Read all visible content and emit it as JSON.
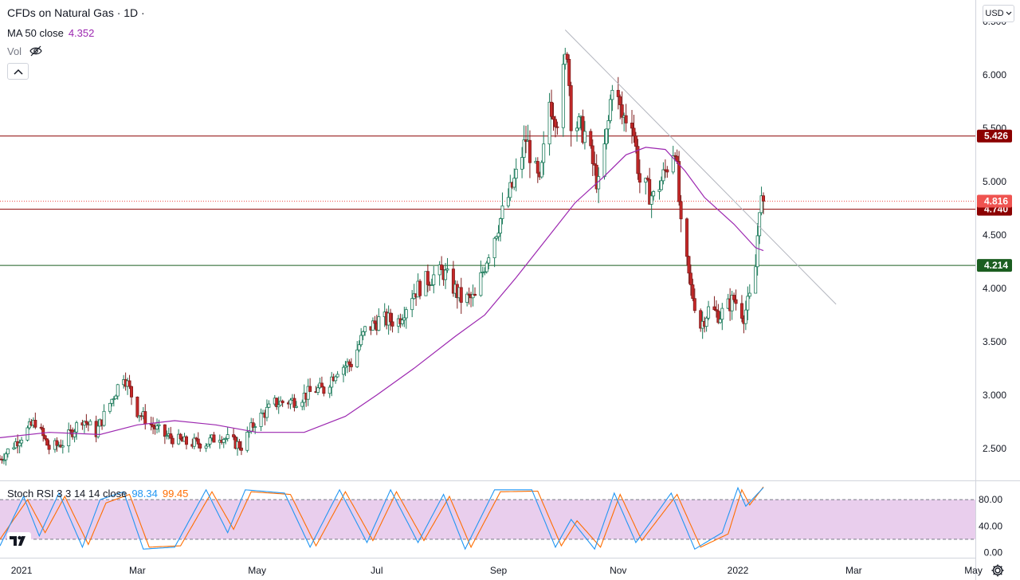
{
  "header": {
    "title": "CFDs on Natural Gas · 1D ·",
    "ma_label": "MA 50 close",
    "ma_value": "4.352",
    "vol_label": "Vol"
  },
  "toolbar": {
    "currency": "USD"
  },
  "colors": {
    "up": "#26a69a",
    "down": "#ef5350",
    "candle_up_body": "#ffffff",
    "candle_down_body": "#c62828",
    "ma": "#9c27b0",
    "red_line": "#8b0000",
    "green_line": "#1b5e20",
    "trend_line": "#b2b5be",
    "stoch_k": "#2196f3",
    "stoch_d": "#ff6d00",
    "stoch_band": "#e1bee7"
  },
  "chart_data": {
    "type": "candlestick",
    "title": "CFDs on Natural Gas · 1D ·",
    "price_axis": {
      "ticks": [
        2.5,
        3.0,
        3.5,
        4.0,
        4.5,
        5.0,
        5.5,
        6.0,
        6.5
      ],
      "tick_labels": [
        "2.500",
        "3.000",
        "3.500",
        "4.000",
        "4.500",
        "5.000",
        "5.500",
        "6.000",
        "6.500"
      ],
      "range": [
        2.2,
        6.7
      ]
    },
    "time_axis": {
      "labels": [
        "2021",
        "Mar",
        "May",
        "Jul",
        "Sep",
        "Nov",
        "2022",
        "Mar",
        "May"
      ],
      "label_dates": [
        "2021-01-01",
        "2021-03-01",
        "2021-05-01",
        "2021-07-01",
        "2021-09-01",
        "2021-11-01",
        "2022-01-01",
        "2022-03-01",
        "2022-05-01"
      ],
      "range": [
        "2020-12-21",
        "2022-05-02"
      ]
    },
    "horizontal_levels": [
      {
        "value": 5.426,
        "label": "5.426",
        "color": "#8b0000",
        "style": "solid"
      },
      {
        "value": 4.74,
        "label": "4.740",
        "color": "#8b0000",
        "style": "solid"
      },
      {
        "value": 4.214,
        "label": "4.214",
        "color": "#1b5e20",
        "style": "solid"
      },
      {
        "value": 4.816,
        "label": "4.816",
        "color": "#ef5350",
        "style": "dotted"
      }
    ],
    "trend_line": {
      "start": [
        "2021-10-05",
        6.42
      ],
      "end": [
        "2022-02-20",
        3.85
      ]
    },
    "price_path": [
      [
        "2020-12-21",
        2.4
      ],
      [
        "2021-01-08",
        2.75
      ],
      [
        "2021-01-15",
        2.5
      ],
      [
        "2021-01-22",
        2.55
      ],
      [
        "2021-02-01",
        2.78
      ],
      [
        "2021-02-08",
        2.65
      ],
      [
        "2021-02-17",
        3.0
      ],
      [
        "2021-02-22",
        3.2
      ],
      [
        "2021-03-01",
        2.85
      ],
      [
        "2021-03-08",
        2.72
      ],
      [
        "2021-03-15",
        2.62
      ],
      [
        "2021-03-26",
        2.55
      ],
      [
        "2021-04-05",
        2.55
      ],
      [
        "2021-04-12",
        2.62
      ],
      [
        "2021-04-23",
        2.52
      ],
      [
        "2021-04-30",
        2.75
      ],
      [
        "2021-05-10",
        2.92
      ],
      [
        "2021-05-20",
        2.95
      ],
      [
        "2021-05-31",
        3.05
      ],
      [
        "2021-06-04",
        3.05
      ],
      [
        "2021-06-11",
        3.25
      ],
      [
        "2021-06-18",
        3.3
      ],
      [
        "2021-06-25",
        3.6
      ],
      [
        "2021-07-02",
        3.7
      ],
      [
        "2021-07-12",
        3.7
      ],
      [
        "2021-07-19",
        3.95
      ],
      [
        "2021-07-28",
        4.1
      ],
      [
        "2021-08-04",
        4.15
      ],
      [
        "2021-08-13",
        3.9
      ],
      [
        "2021-08-20",
        3.9
      ],
      [
        "2021-08-27",
        4.35
      ],
      [
        "2021-09-03",
        4.7
      ],
      [
        "2021-09-10",
        5.05
      ],
      [
        "2021-09-15",
        5.4
      ],
      [
        "2021-09-22",
        4.95
      ],
      [
        "2021-09-27",
        5.75
      ],
      [
        "2021-10-01",
        5.6
      ],
      [
        "2021-10-06",
        6.25
      ],
      [
        "2021-10-08",
        5.6
      ],
      [
        "2021-10-15",
        5.45
      ],
      [
        "2021-10-22",
        4.95
      ],
      [
        "2021-10-27",
        5.55
      ],
      [
        "2021-10-29",
        5.95
      ],
      [
        "2021-11-03",
        5.6
      ],
      [
        "2021-11-08",
        5.6
      ],
      [
        "2021-11-12",
        5.0
      ],
      [
        "2021-11-19",
        4.85
      ],
      [
        "2021-11-24",
        5.05
      ],
      [
        "2021-11-30",
        5.35
      ],
      [
        "2021-12-03",
        4.55
      ],
      [
        "2021-12-08",
        4.0
      ],
      [
        "2021-12-13",
        3.65
      ],
      [
        "2021-12-17",
        3.8
      ],
      [
        "2021-12-23",
        3.75
      ],
      [
        "2021-12-30",
        3.9
      ],
      [
        "2022-01-04",
        3.75
      ],
      [
        "2022-01-07",
        3.9
      ],
      [
        "2022-01-10",
        4.2
      ],
      [
        "2022-01-12",
        4.8
      ],
      [
        "2022-01-14",
        4.816
      ]
    ],
    "ma50_path": [
      [
        "2020-12-21",
        2.6
      ],
      [
        "2021-01-15",
        2.65
      ],
      [
        "2021-02-10",
        2.63
      ],
      [
        "2021-03-01",
        2.72
      ],
      [
        "2021-03-20",
        2.76
      ],
      [
        "2021-04-10",
        2.72
      ],
      [
        "2021-05-01",
        2.65
      ],
      [
        "2021-05-25",
        2.65
      ],
      [
        "2021-06-15",
        2.8
      ],
      [
        "2021-07-01",
        3.0
      ],
      [
        "2021-07-20",
        3.25
      ],
      [
        "2021-08-10",
        3.55
      ],
      [
        "2021-08-25",
        3.75
      ],
      [
        "2021-09-10",
        4.1
      ],
      [
        "2021-09-25",
        4.45
      ],
      [
        "2021-10-10",
        4.8
      ],
      [
        "2021-10-25",
        5.05
      ],
      [
        "2021-11-05",
        5.25
      ],
      [
        "2021-11-15",
        5.32
      ],
      [
        "2021-11-25",
        5.3
      ],
      [
        "2021-12-05",
        5.1
      ],
      [
        "2021-12-15",
        4.85
      ],
      [
        "2021-12-30",
        4.6
      ],
      [
        "2022-01-10",
        4.38
      ],
      [
        "2022-01-14",
        4.352
      ]
    ],
    "ma50_last": 4.352,
    "last_price": 4.816,
    "stoch_rsi": {
      "label": "Stoch RSI 3 3 14 14 close",
      "k_value": "98.34",
      "d_value": "99.45",
      "range": [
        -8,
        108
      ],
      "ticks": [
        0,
        40,
        80
      ],
      "tick_labels": [
        "0.00",
        "40.00",
        "80.00"
      ],
      "band": [
        20,
        80
      ],
      "k_path": [
        [
          "2020-12-21",
          10
        ],
        [
          "2021-01-02",
          85
        ],
        [
          "2021-01-10",
          25
        ],
        [
          "2021-01-20",
          90
        ],
        [
          "2021-02-01",
          8
        ],
        [
          "2021-02-10",
          80
        ],
        [
          "2021-02-22",
          92
        ],
        [
          "2021-03-04",
          5
        ],
        [
          "2021-03-20",
          8
        ],
        [
          "2021-04-05",
          95
        ],
        [
          "2021-04-16",
          30
        ],
        [
          "2021-04-25",
          95
        ],
        [
          "2021-05-15",
          90
        ],
        [
          "2021-05-28",
          8
        ],
        [
          "2021-06-12",
          95
        ],
        [
          "2021-06-26",
          15
        ],
        [
          "2021-07-08",
          95
        ],
        [
          "2021-07-22",
          15
        ],
        [
          "2021-08-04",
          88
        ],
        [
          "2021-08-15",
          5
        ],
        [
          "2021-08-30",
          95
        ],
        [
          "2021-09-18",
          95
        ],
        [
          "2021-09-30",
          8
        ],
        [
          "2021-10-08",
          50
        ],
        [
          "2021-10-20",
          5
        ],
        [
          "2021-10-30",
          90
        ],
        [
          "2021-11-10",
          15
        ],
        [
          "2021-11-28",
          90
        ],
        [
          "2021-12-10",
          5
        ],
        [
          "2021-12-24",
          30
        ],
        [
          "2022-01-01",
          98
        ],
        [
          "2022-01-05",
          70
        ],
        [
          "2022-01-14",
          98.34
        ]
      ],
      "d_path": [
        [
          "2020-12-21",
          20
        ],
        [
          "2021-01-04",
          80
        ],
        [
          "2021-01-13",
          30
        ],
        [
          "2021-01-23",
          85
        ],
        [
          "2021-02-04",
          12
        ],
        [
          "2021-02-13",
          75
        ],
        [
          "2021-02-25",
          88
        ],
        [
          "2021-03-07",
          8
        ],
        [
          "2021-03-23",
          10
        ],
        [
          "2021-04-08",
          92
        ],
        [
          "2021-04-19",
          35
        ],
        [
          "2021-04-28",
          92
        ],
        [
          "2021-05-18",
          88
        ],
        [
          "2021-05-31",
          10
        ],
        [
          "2021-06-15",
          92
        ],
        [
          "2021-06-29",
          18
        ],
        [
          "2021-07-11",
          92
        ],
        [
          "2021-07-25",
          18
        ],
        [
          "2021-08-07",
          85
        ],
        [
          "2021-08-18",
          8
        ],
        [
          "2021-09-02",
          92
        ],
        [
          "2021-09-21",
          93
        ],
        [
          "2021-10-03",
          10
        ],
        [
          "2021-10-11",
          48
        ],
        [
          "2021-10-23",
          8
        ],
        [
          "2021-11-02",
          88
        ],
        [
          "2021-11-13",
          18
        ],
        [
          "2021-12-01",
          88
        ],
        [
          "2021-12-13",
          8
        ],
        [
          "2021-12-27",
          28
        ],
        [
          "2022-01-03",
          95
        ],
        [
          "2022-01-07",
          72
        ],
        [
          "2022-01-14",
          99.45
        ]
      ]
    }
  }
}
